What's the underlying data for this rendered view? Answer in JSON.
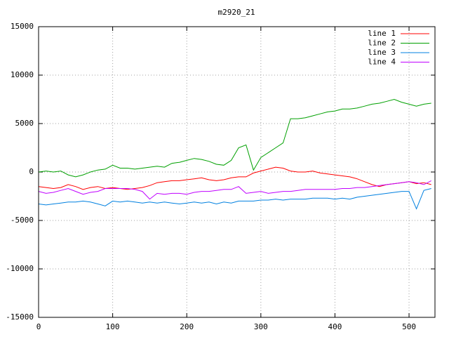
{
  "chart_data": {
    "type": "line",
    "title": "m2920_21",
    "x": [
      0,
      10,
      20,
      30,
      40,
      50,
      60,
      70,
      80,
      90,
      100,
      110,
      120,
      130,
      140,
      150,
      160,
      170,
      180,
      190,
      200,
      210,
      220,
      230,
      240,
      250,
      260,
      270,
      280,
      290,
      300,
      310,
      320,
      330,
      340,
      350,
      360,
      370,
      380,
      390,
      400,
      410,
      420,
      430,
      440,
      450,
      460,
      470,
      480,
      490,
      500,
      510,
      520,
      530
    ],
    "series": [
      {
        "name": "line 1",
        "color": "#ff0000",
        "values": [
          -1500,
          -1600,
          -1700,
          -1600,
          -1300,
          -1500,
          -1800,
          -1600,
          -1500,
          -1700,
          -1600,
          -1700,
          -1800,
          -1700,
          -1600,
          -1400,
          -1100,
          -1000,
          -900,
          -900,
          -800,
          -700,
          -600,
          -800,
          -900,
          -800,
          -600,
          -500,
          -500,
          -100,
          100,
          300,
          500,
          400,
          100,
          0,
          0,
          100,
          -100,
          -200,
          -300,
          -400,
          -500,
          -700,
          -1000,
          -1300,
          -1500,
          -1300,
          -1200,
          -1100,
          -1000,
          -1200,
          -1100,
          -1300
        ]
      },
      {
        "name": "line 2",
        "color": "#00a000",
        "values": [
          0,
          100,
          0,
          100,
          -300,
          -500,
          -300,
          0,
          200,
          300,
          700,
          400,
          400,
          300,
          400,
          500,
          600,
          500,
          900,
          1000,
          1200,
          1400,
          1300,
          1100,
          800,
          700,
          1200,
          2500,
          2800,
          200,
          1500,
          2000,
          2500,
          3000,
          5500,
          5500,
          5600,
          5800,
          6000,
          6200,
          6300,
          6500,
          6500,
          6600,
          6800,
          7000,
          7100,
          7300,
          7500,
          7200,
          7000,
          6800,
          7000,
          7100
        ]
      },
      {
        "name": "line 3",
        "color": "#0080e0",
        "values": [
          -3300,
          -3400,
          -3300,
          -3200,
          -3100,
          -3100,
          -3000,
          -3100,
          -3300,
          -3500,
          -3000,
          -3100,
          -3000,
          -3100,
          -3200,
          -3100,
          -3200,
          -3100,
          -3200,
          -3300,
          -3200,
          -3100,
          -3200,
          -3100,
          -3300,
          -3100,
          -3200,
          -3000,
          -3000,
          -3000,
          -2900,
          -2900,
          -2800,
          -2900,
          -2800,
          -2800,
          -2800,
          -2700,
          -2700,
          -2700,
          -2800,
          -2700,
          -2800,
          -2600,
          -2500,
          -2400,
          -2300,
          -2200,
          -2100,
          -2000,
          -2000,
          -3800,
          -1900,
          -1700
        ]
      },
      {
        "name": "line 4",
        "color": "#c000ff",
        "values": [
          -2000,
          -2200,
          -2100,
          -1900,
          -1700,
          -2000,
          -2300,
          -2100,
          -2000,
          -1700,
          -1700,
          -1700,
          -1700,
          -1800,
          -2000,
          -2800,
          -2200,
          -2300,
          -2200,
          -2200,
          -2300,
          -2100,
          -2000,
          -2000,
          -1900,
          -1800,
          -1800,
          -1500,
          -2200,
          -2100,
          -2000,
          -2200,
          -2100,
          -2000,
          -2000,
          -1900,
          -1800,
          -1800,
          -1800,
          -1800,
          -1800,
          -1700,
          -1700,
          -1600,
          -1600,
          -1500,
          -1400,
          -1300,
          -1200,
          -1100,
          -1000,
          -1100,
          -1300,
          -900
        ]
      }
    ],
    "xlim": [
      0,
      535
    ],
    "xticks": [
      0,
      100,
      200,
      300,
      400,
      500
    ],
    "ylim": [
      -15000,
      15000
    ],
    "yticks": [
      -15000,
      -10000,
      -5000,
      0,
      5000,
      10000,
      15000
    ],
    "grid": true,
    "legend": "top-right"
  }
}
